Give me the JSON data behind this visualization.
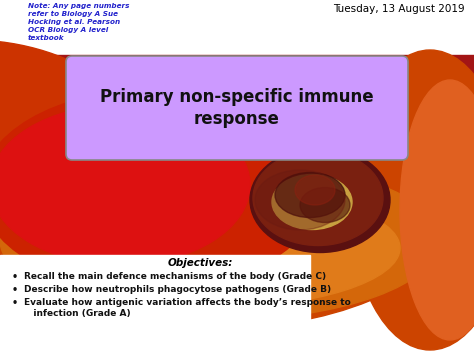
{
  "bg_color": "#ffffff",
  "title_text": "Primary non-specific immune\nresponse",
  "title_box_facecolor": "#cc99ff",
  "title_box_edgecolor": "#888888",
  "date_text": "Tuesday, 13 August 2019",
  "date_color": "#000000",
  "note_text": "Note: Any page numbers\nrefer to Biology A Sue\nHocking et al. Pearson\nOCR Biology A level\ntextbook",
  "note_color": "#2222cc",
  "objectives_title": "Objectives:",
  "bullet_points": [
    "Recall the main defence mechanisms of the body (Grade C)",
    "Describe how neutrophils phagocytose pathogens (Grade B)",
    "Evaluate how antigenic variation affects the body’s response to\n   infection (Grade A)"
  ],
  "figsize": [
    4.74,
    3.55
  ],
  "dpi": 100
}
